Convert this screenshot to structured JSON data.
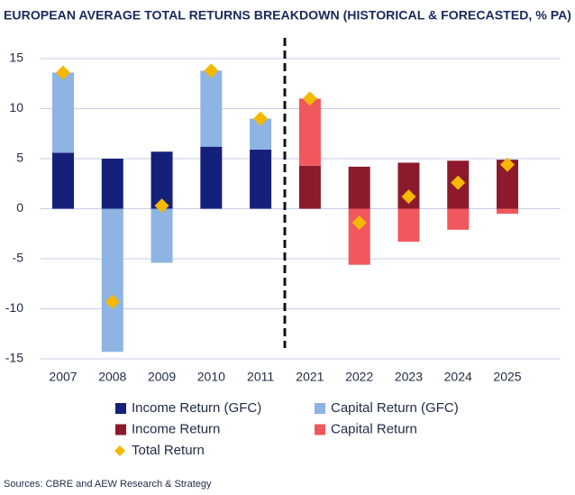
{
  "chart_data": {
    "type": "bar",
    "stacked": true,
    "title": "EUROPEAN AVERAGE TOTAL RETURNS BREAKDOWN (HISTORICAL & FORECASTED, % PA)",
    "categories": [
      "2007",
      "2008",
      "2009",
      "2010",
      "2011",
      "2021",
      "2022",
      "2023",
      "2024",
      "2025"
    ],
    "series": [
      {
        "name": "Income Return (GFC)",
        "color": "#15207a",
        "values": [
          5.6,
          5.0,
          5.7,
          6.2,
          5.9,
          null,
          null,
          null,
          null,
          null
        ]
      },
      {
        "name": "Capital Return (GFC)",
        "color": "#8db4e2",
        "values": [
          8.0,
          -14.3,
          -5.4,
          7.6,
          3.1,
          null,
          null,
          null,
          null,
          null
        ]
      },
      {
        "name": "Income Return",
        "color": "#8c1a2c",
        "values": [
          null,
          null,
          null,
          null,
          null,
          4.3,
          4.2,
          4.6,
          4.8,
          4.9
        ]
      },
      {
        "name": "Capital Return",
        "color": "#f0585d",
        "values": [
          null,
          null,
          null,
          null,
          null,
          6.7,
          -5.6,
          -3.3,
          -2.1,
          -0.5
        ]
      },
      {
        "name": "Total Return",
        "type": "scatter",
        "color": "#f5b800",
        "values": [
          13.6,
          -9.3,
          0.3,
          13.8,
          9.0,
          11.0,
          -1.4,
          1.2,
          2.6,
          4.4
        ]
      }
    ],
    "ylim": [
      -15,
      15
    ],
    "yticks": [
      -15,
      -10,
      -5,
      0,
      5,
      10,
      15
    ],
    "grid": true,
    "source": "Sources: CBRE and AEW Research & Strategy"
  }
}
